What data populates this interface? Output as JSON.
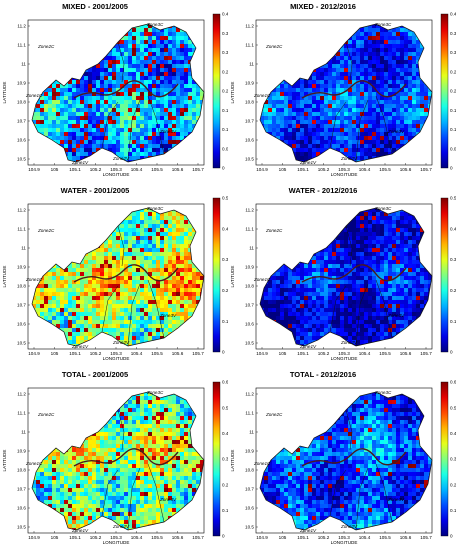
{
  "panels": [
    {
      "title": "MIXED - 2001/2005",
      "cmax_ticks": [
        "0.4",
        "0.35",
        "0.3",
        "0.25",
        "0.2",
        "0.15",
        "0.1",
        "0.05",
        "0"
      ],
      "pattern": "mixed_a"
    },
    {
      "title": "MIXED - 2012/2016",
      "cmax_ticks": [
        "0.4",
        "0.35",
        "0.3",
        "0.25",
        "0.2",
        "0.15",
        "0.1",
        "0.05",
        "0"
      ],
      "pattern": "mixed_b"
    },
    {
      "title": "WATER - 2001/2005",
      "cmax_ticks": [
        "0.5",
        "0.4",
        "0.3",
        "0.2",
        "0.1",
        "0"
      ],
      "pattern": "water_a"
    },
    {
      "title": "WATER - 2012/2016",
      "cmax_ticks": [
        "0.5",
        "0.4",
        "0.3",
        "0.2",
        "0.1",
        "0"
      ],
      "pattern": "water_b"
    },
    {
      "title": "TOTAL - 2001/2005",
      "cmax_ticks": [
        "0.6",
        "0.5",
        "0.4",
        "0.3",
        "0.2",
        "0.1",
        "0"
      ],
      "pattern": "total_a"
    },
    {
      "title": "TOTAL - 2012/2016",
      "cmax_ticks": [
        "0.6",
        "0.5",
        "0.4",
        "0.3",
        "0.2",
        "0.1",
        "0"
      ],
      "pattern": "total_b"
    }
  ],
  "axes": {
    "xlabel": "LONGITUDE",
    "ylabel": "LATITUDE",
    "xticks": [
      "104.9",
      "105",
      "105.1",
      "105.2",
      "105.3",
      "105.4",
      "105.5",
      "105.6",
      "105.7"
    ],
    "yticks": [
      "11.2",
      "11.1",
      "11",
      "10.9",
      "10.8",
      "10.7",
      "10.6",
      "10.5"
    ]
  },
  "zones": [
    "Zone2C",
    "Zone3C",
    "Zone1C",
    "Zone1V",
    "Zone2V",
    "Zone3V"
  ],
  "colors": {
    "low": "#00008f",
    "mid": "#00ffff",
    "high": "#ffff00",
    "max": "#800000"
  }
}
